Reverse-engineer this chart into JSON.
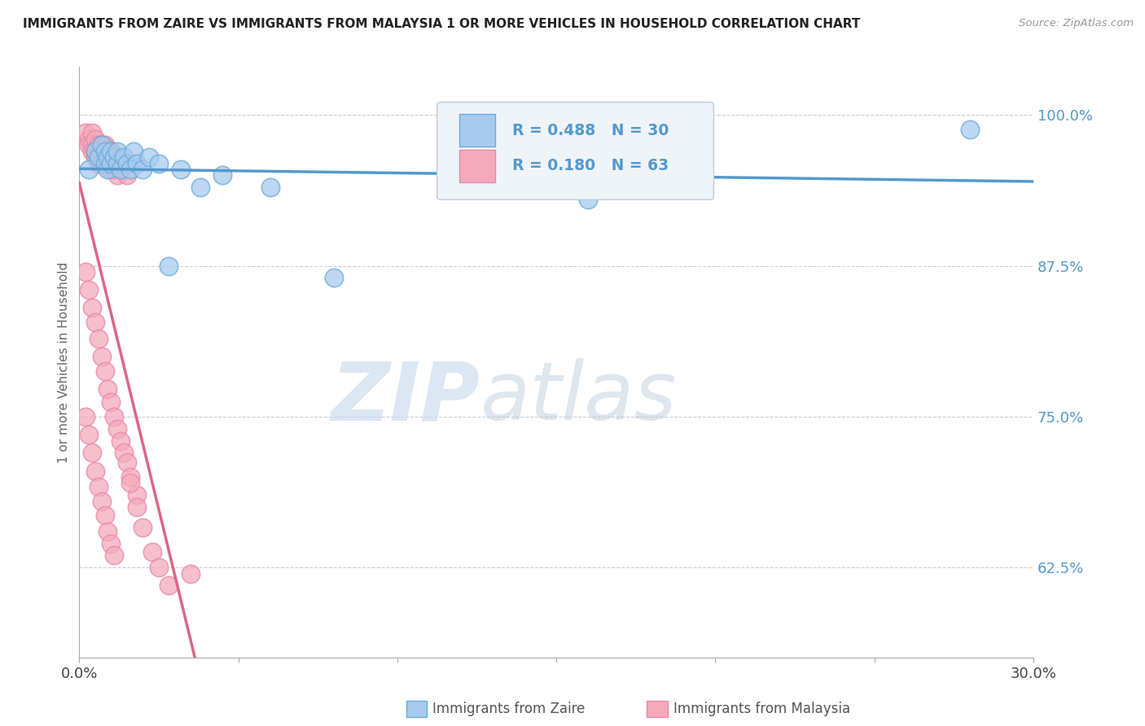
{
  "title": "IMMIGRANTS FROM ZAIRE VS IMMIGRANTS FROM MALAYSIA 1 OR MORE VEHICLES IN HOUSEHOLD CORRELATION CHART",
  "source": "Source: ZipAtlas.com",
  "ylabel": "1 or more Vehicles in Household",
  "x_min": 0.0,
  "x_max": 0.3,
  "y_min": 0.55,
  "y_max": 1.04,
  "x_ticks": [
    0.0,
    0.05,
    0.1,
    0.15,
    0.2,
    0.25,
    0.3
  ],
  "y_ticks": [
    0.625,
    0.75,
    0.875,
    1.0
  ],
  "y_tick_labels": [
    "62.5%",
    "75.0%",
    "87.5%",
    "100.0%"
  ],
  "blue_color": "#A8CAEE",
  "pink_color": "#F4AABB",
  "blue_edge_color": "#6AAAD8",
  "pink_edge_color": "#E888A8",
  "blue_line_color": "#5599CC",
  "pink_line_color": "#DD6688",
  "legend_R_blue": "R = 0.488",
  "legend_N_blue": "N = 30",
  "legend_R_pink": "R = 0.180",
  "legend_N_pink": "N = 63",
  "legend_label_blue": "Immigrants from Zaire",
  "legend_label_pink": "Immigrants from Malaysia",
  "watermark_zip": "ZIP",
  "watermark_atlas": "atlas",
  "blue_x": [
    0.003,
    0.005,
    0.006,
    0.007,
    0.008,
    0.008,
    0.009,
    0.009,
    0.01,
    0.01,
    0.011,
    0.012,
    0.012,
    0.013,
    0.014,
    0.015,
    0.016,
    0.017,
    0.018,
    0.02,
    0.022,
    0.025,
    0.028,
    0.032,
    0.038,
    0.045,
    0.06,
    0.08,
    0.16,
    0.28
  ],
  "blue_y": [
    0.955,
    0.97,
    0.965,
    0.975,
    0.96,
    0.97,
    0.955,
    0.965,
    0.96,
    0.97,
    0.965,
    0.96,
    0.97,
    0.955,
    0.965,
    0.96,
    0.955,
    0.97,
    0.96,
    0.955,
    0.965,
    0.96,
    0.875,
    0.955,
    0.94,
    0.95,
    0.94,
    0.865,
    0.93,
    0.988
  ],
  "pink_x": [
    0.002,
    0.003,
    0.003,
    0.004,
    0.004,
    0.004,
    0.005,
    0.005,
    0.005,
    0.006,
    0.006,
    0.006,
    0.007,
    0.007,
    0.007,
    0.008,
    0.008,
    0.008,
    0.009,
    0.009,
    0.01,
    0.01,
    0.01,
    0.011,
    0.011,
    0.012,
    0.012,
    0.013,
    0.014,
    0.015,
    0.002,
    0.003,
    0.004,
    0.005,
    0.006,
    0.007,
    0.008,
    0.009,
    0.01,
    0.011,
    0.012,
    0.013,
    0.014,
    0.015,
    0.016,
    0.018,
    0.002,
    0.003,
    0.004,
    0.005,
    0.006,
    0.007,
    0.008,
    0.009,
    0.01,
    0.011,
    0.016,
    0.018,
    0.02,
    0.023,
    0.025,
    0.028,
    0.035
  ],
  "pink_y": [
    0.985,
    0.98,
    0.975,
    0.985,
    0.975,
    0.97,
    0.98,
    0.97,
    0.965,
    0.975,
    0.965,
    0.96,
    0.975,
    0.965,
    0.96,
    0.975,
    0.965,
    0.958,
    0.972,
    0.962,
    0.97,
    0.96,
    0.955,
    0.965,
    0.955,
    0.96,
    0.95,
    0.955,
    0.96,
    0.95,
    0.87,
    0.855,
    0.84,
    0.828,
    0.815,
    0.8,
    0.788,
    0.773,
    0.762,
    0.75,
    0.74,
    0.73,
    0.72,
    0.712,
    0.7,
    0.685,
    0.75,
    0.735,
    0.72,
    0.705,
    0.692,
    0.68,
    0.668,
    0.655,
    0.645,
    0.635,
    0.695,
    0.675,
    0.658,
    0.638,
    0.625,
    0.61,
    0.62
  ]
}
